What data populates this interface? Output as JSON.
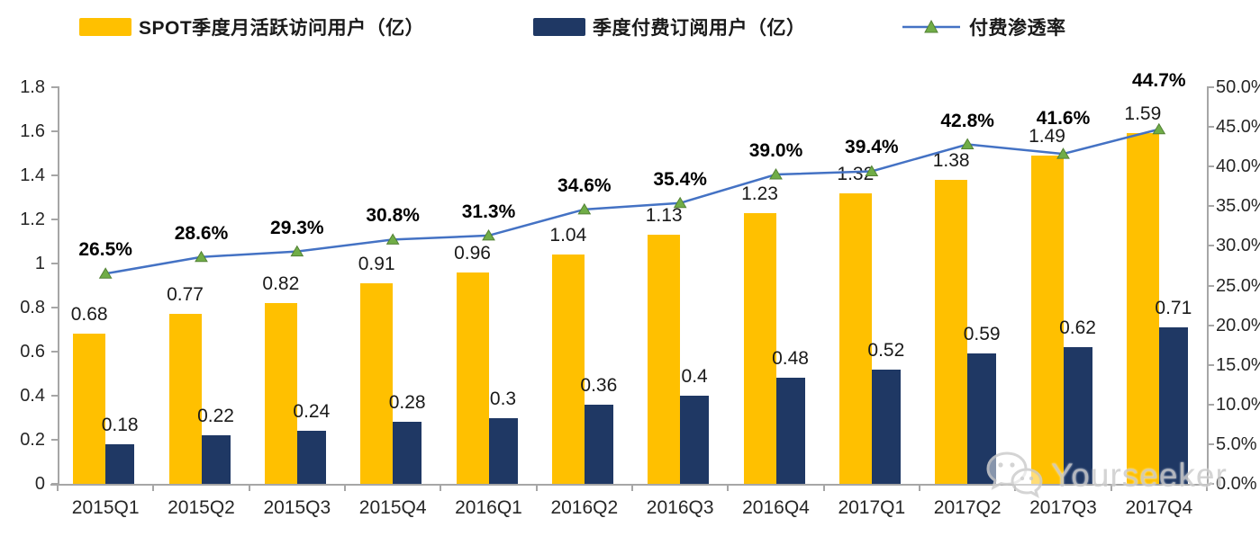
{
  "legend": {
    "items": [
      {
        "id": "mau",
        "label": "SPOT季度月活跃访问用户（亿）",
        "swatch": "bar",
        "color": "#FFC000"
      },
      {
        "id": "subs",
        "label": "季度付费订阅用户（亿）",
        "swatch": "bar",
        "color": "#1F3864"
      },
      {
        "id": "penetration",
        "label": "付费渗透率",
        "swatch": "line",
        "color": "#4472C4",
        "marker_color": "#70AD47"
      }
    ]
  },
  "chart_data": {
    "type": "bar",
    "subtype": "bar-line-combo",
    "categories": [
      "2015Q1",
      "2015Q2",
      "2015Q3",
      "2015Q4",
      "2016Q1",
      "2016Q2",
      "2016Q3",
      "2016Q4",
      "2017Q1",
      "2017Q2",
      "2017Q3",
      "2017Q4"
    ],
    "series": [
      {
        "name": "SPOT季度月活跃访问用户（亿）",
        "type": "bar",
        "axis": "left",
        "color": "#FFC000",
        "values": [
          0.68,
          0.77,
          0.82,
          0.91,
          0.96,
          1.04,
          1.13,
          1.23,
          1.32,
          1.38,
          1.49,
          1.59
        ],
        "labels": [
          "0.68",
          "0.77",
          "0.82",
          "0.91",
          "0.96",
          "1.04",
          "1.13",
          "1.23",
          "1.32",
          "1.38",
          "1.49",
          "1.59"
        ]
      },
      {
        "name": "季度付费订阅用户（亿）",
        "type": "bar",
        "axis": "left",
        "color": "#1F3864",
        "values": [
          0.18,
          0.22,
          0.24,
          0.28,
          0.3,
          0.36,
          0.4,
          0.48,
          0.52,
          0.59,
          0.62,
          0.71
        ],
        "labels": [
          "0.18",
          "0.22",
          "0.24",
          "0.28",
          "0.3",
          "0.36",
          "0.4",
          "0.48",
          "0.52",
          "0.59",
          "0.62",
          "0.71"
        ]
      },
      {
        "name": "付费渗透率",
        "type": "line",
        "axis": "right",
        "color": "#4472C4",
        "marker": "triangle",
        "marker_color": "#70AD47",
        "values": [
          26.5,
          28.6,
          29.3,
          30.8,
          31.3,
          34.6,
          35.4,
          39.0,
          39.4,
          42.8,
          41.6,
          44.7
        ],
        "labels": [
          "26.5%",
          "28.6%",
          "29.3%",
          "30.8%",
          "31.3%",
          "34.6%",
          "35.4%",
          "39.0%",
          "39.4%",
          "42.8%",
          "41.6%",
          "44.7%"
        ]
      }
    ],
    "left_axis": {
      "min": 0,
      "max": 1.8,
      "step": 0.2,
      "ticks": [
        "0",
        "0.2",
        "0.4",
        "0.6",
        "0.8",
        "1",
        "1.2",
        "1.4",
        "1.6",
        "1.8"
      ]
    },
    "right_axis": {
      "min": 0,
      "max": 50,
      "step": 5,
      "unit": "%",
      "ticks": [
        "0.0%",
        "5.0%",
        "10.0%",
        "15.0%",
        "20.0%",
        "25.0%",
        "30.0%",
        "35.0%",
        "40.0%",
        "45.0%",
        "50.0%"
      ]
    },
    "grid": false,
    "legend_position": "top"
  },
  "watermark": {
    "text": "Yourseeker",
    "icon": "wechat"
  },
  "colors": {
    "bar_mau": "#FFC000",
    "bar_subs": "#1F3864",
    "line": "#4472C4",
    "marker": "#70AD47",
    "axis": "#a6a6a6",
    "text": "#262626"
  }
}
